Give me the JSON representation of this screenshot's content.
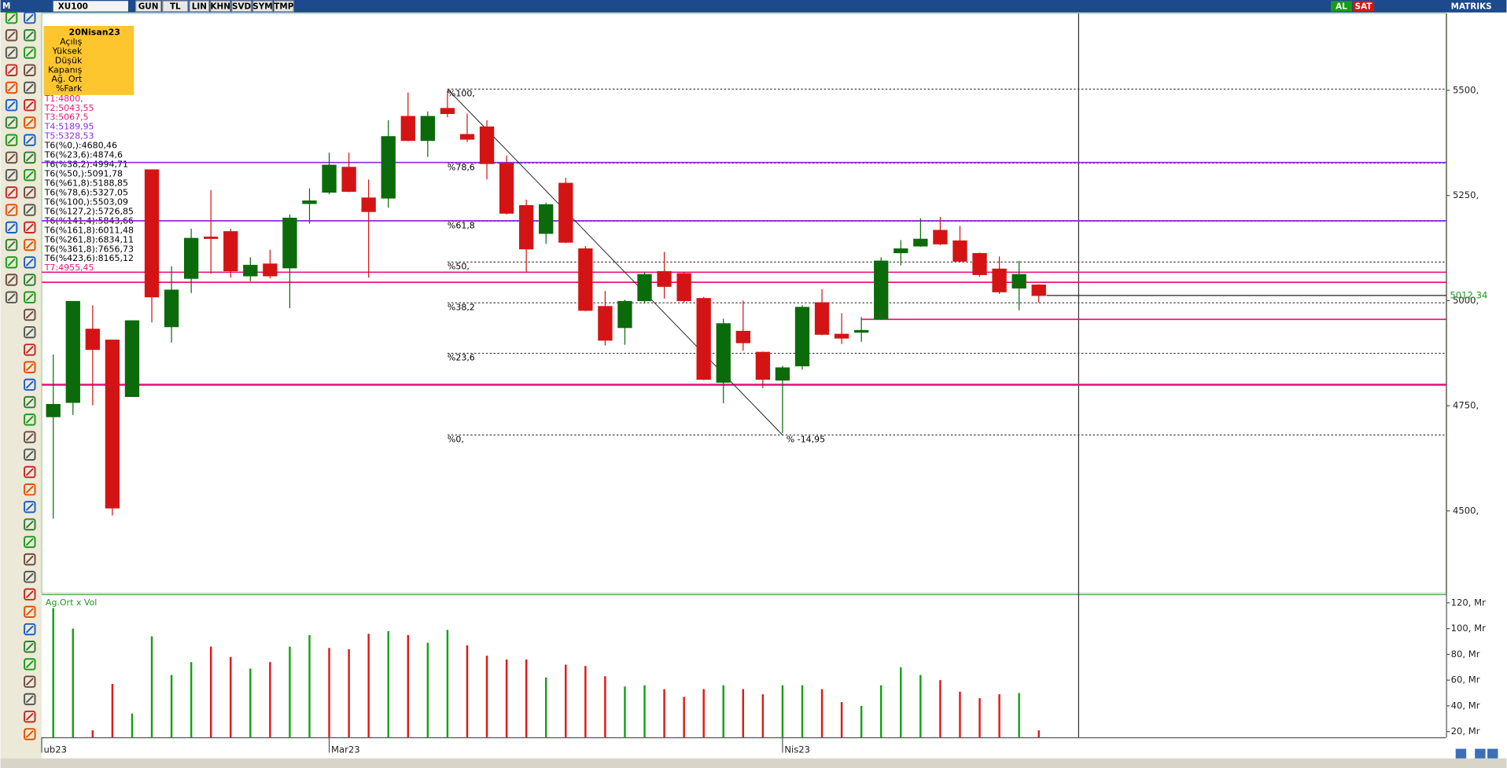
{
  "toolbar": {
    "prefix": "M",
    "symbol": "XU100",
    "buttons": [
      "GUN",
      "TL",
      "LIN",
      "KHN",
      "SVD",
      "SYM",
      "TMP"
    ],
    "actions": [
      "AL",
      "SAT"
    ],
    "brand": "MATRIKS"
  },
  "info_panel": {
    "date": "20Nisan23",
    "fields": [
      "Açılış",
      "Yüksek",
      "Düşük",
      "Kapanış",
      "Ağ. Ort",
      "%Fark"
    ]
  },
  "chart_data": {
    "type": "candlestick",
    "open": [
      4724,
      4758,
      4932,
      4906,
      4772,
      5311,
      4938,
      5053,
      5151,
      5164,
      5059,
      5087,
      5078,
      5231,
      5258,
      5317,
      5244,
      5244,
      5438,
      5381,
      5457,
      5395,
      5413,
      5326,
      5226,
      5160,
      5279,
      5123,
      4986,
      4936,
      5000,
      5069,
      5064,
      5005,
      4806,
      4927,
      4877,
      4811,
      4845,
      4995,
      4920,
      4925,
      4957,
      5114,
      5130,
      5167,
      5142,
      5112,
      5075,
      5030,
      5037
    ],
    "high": [
      4872,
      4998,
      4989,
      4906,
      4952,
      5311,
      5082,
      5171,
      5263,
      5171,
      5103,
      5121,
      5205,
      5267,
      5352,
      5352,
      5288,
      5429,
      5495,
      5450,
      5500,
      5445,
      5429,
      5345,
      5240,
      5233,
      5292,
      5130,
      5023,
      5002,
      5069,
      5116,
      5069,
      5009,
      4957,
      5000,
      4879,
      4845,
      4989,
      5027,
      4970,
      4961,
      5103,
      5144,
      5196,
      5199,
      5178,
      5114,
      5105,
      5094,
      5039
    ],
    "low": [
      4482,
      4728,
      4751,
      4489,
      4772,
      4948,
      4900,
      5018,
      5064,
      5055,
      5046,
      5053,
      4982,
      5183,
      5253,
      5258,
      5055,
      5221,
      5379,
      5342,
      5436,
      5377,
      5288,
      5205,
      5069,
      5135,
      5137,
      4975,
      4893,
      4895,
      4993,
      5005,
      4995,
      4811,
      4756,
      4881,
      4792,
      4685,
      4836,
      4918,
      4897,
      4902,
      4954,
      5084,
      5128,
      5132,
      5091,
      5057,
      5016,
      4977,
      4995
    ],
    "close": [
      4753,
      4998,
      4884,
      4507,
      4952,
      5009,
      5025,
      5148,
      5148,
      5071,
      5084,
      5059,
      5196,
      5237,
      5322,
      5260,
      5212,
      5390,
      5381,
      5438,
      5445,
      5384,
      5326,
      5208,
      5123,
      5228,
      5139,
      4977,
      4906,
      4998,
      5062,
      5034,
      5000,
      4813,
      4945,
      4900,
      4813,
      4840,
      4984,
      4920,
      4911,
      4929,
      5094,
      5123,
      5146,
      5135,
      5094,
      5062,
      5021,
      5062,
      5012.34
    ],
    "last_price_label": "5012,34",
    "up_color": "#0b6b0b",
    "down_color": "#d41414",
    "ylim": [
      4304,
      5683
    ],
    "yticks": [
      {
        "value": 4500,
        "label": "4500,"
      },
      {
        "value": 4750,
        "label": "4750,"
      },
      {
        "value": 5000,
        "label": "5000,"
      },
      {
        "value": 5250,
        "label": "5250,"
      },
      {
        "value": 5500,
        "label": "5500,"
      }
    ],
    "x_labels": [
      {
        "index": 0,
        "label": "ub23"
      },
      {
        "index": 14,
        "label": "Mar23"
      },
      {
        "index": 37,
        "label": "Nis23"
      }
    ],
    "levels": [
      {
        "text": "T1:4800,",
        "value": 4800,
        "color": "#e8167c"
      },
      {
        "text": "T2:5043,55",
        "value": 5043.55,
        "color": "#e8167c"
      },
      {
        "text": "T3:5067,5",
        "value": 5067.5,
        "color": "#e8167c"
      },
      {
        "text": "T4:5189,95",
        "value": 5189.95,
        "color": "#8a2be2"
      },
      {
        "text": "T5:5328,53",
        "value": 5328.53,
        "color": "#8a2be2"
      },
      {
        "text": "T7:4955,45",
        "value": 4955.45,
        "color": "#e8167c",
        "from_index": 41
      }
    ],
    "fibonacci": {
      "from_index": 20,
      "to_index": 37,
      "change_label": "% -14,95",
      "levels": [
        {
          "text": "T6(%0,):4680,46",
          "value": 4680.46,
          "chart_label": "%0,"
        },
        {
          "text": "T6(%23,6):4874,6",
          "value": 4874.6,
          "chart_label": "%23,6"
        },
        {
          "text": "T6(%38,2):4994,71",
          "value": 4994.71,
          "chart_label": "%38,2"
        },
        {
          "text": "T6(%50,):5091,78",
          "value": 5091.78,
          "chart_label": "%50,"
        },
        {
          "text": "T6(%61,8):5188,85",
          "value": 5188.85,
          "chart_label": "%61,8"
        },
        {
          "text": "T6(%78,6):5327,05",
          "value": 5327.05,
          "chart_label": "%78,6"
        },
        {
          "text": "T6(%100,):5503,09",
          "value": 5503.09,
          "chart_label": "%100,"
        },
        {
          "text": "T6(%127,2):5726,85",
          "value": 5726.85
        },
        {
          "text": "T6(%141,4):5843,66",
          "value": 5843.66
        },
        {
          "text": "T6(%161,8):6011,48",
          "value": 6011.48
        },
        {
          "text": "T6(%261,8):6834,11",
          "value": 6834.11
        },
        {
          "text": "T6(%361,8):7656,73",
          "value": 7656.73
        },
        {
          "text": "T6(%423,6):8165,12",
          "value": 8165.12
        }
      ]
    },
    "volume": {
      "title": "Ag.Ort x Vol",
      "values": [
        116,
        100,
        21,
        57,
        34,
        94,
        64,
        74,
        86,
        78,
        69,
        74,
        86,
        95,
        85,
        84,
        96,
        98,
        95,
        89,
        99,
        87,
        79,
        76,
        76,
        62,
        72,
        71,
        63,
        55,
        56,
        53,
        47,
        53,
        56,
        53,
        49,
        56,
        56,
        53,
        43,
        40,
        56,
        70,
        64,
        60,
        51,
        46,
        49,
        50,
        21
      ],
      "colors": [
        "#16a016",
        "#16a016",
        "#e01818",
        "#e01818",
        "#16a016",
        "#16a016",
        "#16a016",
        "#16a016",
        "#e01818",
        "#e01818",
        "#16a016",
        "#e01818",
        "#16a016",
        "#16a016",
        "#e01818",
        "#e01818",
        "#e01818",
        "#16a016",
        "#e01818",
        "#16a016",
        "#16a016",
        "#e01818",
        "#e01818",
        "#e01818",
        "#e01818",
        "#16a016",
        "#e01818",
        "#e01818",
        "#e01818",
        "#16a016",
        "#16a016",
        "#e01818",
        "#e01818",
        "#e01818",
        "#16a016",
        "#e01818",
        "#e01818",
        "#16a016",
        "#16a016",
        "#e01818",
        "#e01818",
        "#16a016",
        "#16a016",
        "#16a016",
        "#16a016",
        "#e01818",
        "#e01818",
        "#e01818",
        "#e01818",
        "#16a016",
        "#e01818"
      ],
      "ylim": [
        15.6,
        125.2
      ],
      "yticks": [
        {
          "value": 20,
          "label": "20, Mr"
        },
        {
          "value": 40,
          "label": "40, Mr"
        },
        {
          "value": 60,
          "label": "60, Mr"
        },
        {
          "value": 80,
          "label": "80, Mr"
        },
        {
          "value": 100,
          "label": "100, Mr"
        },
        {
          "value": 120,
          "label": "120, Mr"
        }
      ]
    }
  }
}
